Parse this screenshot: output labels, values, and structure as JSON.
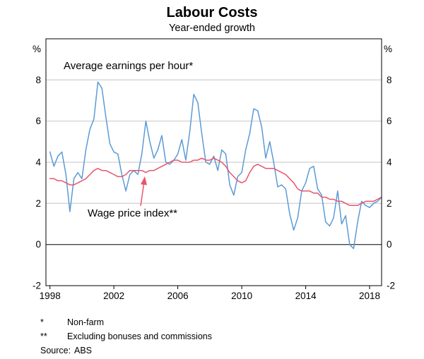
{
  "header": {
    "title": "Labour Costs",
    "subtitle": "Year-ended growth"
  },
  "axes": {
    "unit_left": "%",
    "unit_right": "%",
    "yticks": [
      -2,
      0,
      2,
      4,
      6,
      8
    ],
    "xticks": [
      1998,
      2002,
      2006,
      2010,
      2014,
      2018
    ]
  },
  "annotations": {
    "blue_label": "Average earnings per hour*",
    "red_label": "Wage price index**"
  },
  "footnotes": [
    {
      "marker": "*",
      "text": "Non-farm"
    },
    {
      "marker": "**",
      "text": "Excluding bonuses and commissions"
    },
    {
      "marker": "Source:",
      "text": "ABS"
    }
  ],
  "colors": {
    "blue": "#5b9bd5",
    "red": "#e8566b",
    "grid": "#c6c6c6",
    "zero_line": "#000000",
    "frame": "#000000"
  },
  "chart_data": {
    "type": "line",
    "title": "Labour Costs",
    "subtitle": "Year-ended growth",
    "xlabel": "",
    "ylabel": "%",
    "ylim": [
      -2,
      10
    ],
    "xlim": [
      1997.75,
      2018.75
    ],
    "x_start": 1998.0,
    "x_step": 0.25,
    "frequency": "quarterly",
    "grid": "horizontal",
    "legend_position": "inline-annotations",
    "series": [
      {
        "id": "average-earnings-per-hour",
        "name": "Average earnings per hour (Non-farm)",
        "color": "#5b9bd5",
        "values": [
          4.5,
          3.8,
          4.3,
          4.5,
          3.4,
          1.6,
          3.2,
          3.5,
          3.2,
          4.6,
          5.6,
          6.1,
          7.9,
          7.6,
          6.2,
          4.9,
          4.5,
          4.4,
          3.4,
          2.6,
          3.4,
          3.6,
          3.4,
          4.4,
          6.0,
          5.0,
          4.2,
          4.6,
          5.3,
          4.0,
          3.9,
          4.1,
          4.4,
          5.1,
          4.1,
          5.5,
          7.3,
          6.9,
          5.4,
          4.0,
          3.9,
          4.3,
          3.6,
          4.6,
          4.4,
          2.9,
          2.4,
          3.3,
          3.5,
          4.6,
          5.4,
          6.6,
          6.5,
          5.7,
          4.2,
          5.0,
          4.0,
          2.8,
          2.9,
          2.7,
          1.5,
          0.7,
          1.3,
          2.6,
          3.0,
          3.7,
          3.8,
          2.7,
          2.4,
          1.1,
          0.9,
          1.3,
          2.6,
          1.0,
          1.4,
          0.0,
          -0.2,
          1.1,
          2.1,
          1.9,
          1.8,
          2.0,
          2.1,
          2.3
        ]
      },
      {
        "id": "wage-price-index",
        "name": "Wage price index (Excluding bonuses and commissions)",
        "color": "#e8566b",
        "values": [
          3.2,
          3.2,
          3.1,
          3.1,
          3.0,
          2.9,
          2.9,
          3.0,
          3.1,
          3.2,
          3.4,
          3.6,
          3.7,
          3.6,
          3.6,
          3.5,
          3.4,
          3.3,
          3.3,
          3.4,
          3.6,
          3.6,
          3.6,
          3.6,
          3.5,
          3.6,
          3.6,
          3.7,
          3.8,
          3.9,
          4.0,
          4.1,
          4.1,
          4.0,
          4.0,
          4.0,
          4.1,
          4.1,
          4.2,
          4.1,
          4.1,
          4.2,
          4.1,
          4.0,
          3.8,
          3.5,
          3.3,
          3.1,
          3.0,
          3.1,
          3.5,
          3.8,
          3.9,
          3.8,
          3.7,
          3.7,
          3.7,
          3.6,
          3.5,
          3.4,
          3.2,
          3.0,
          2.7,
          2.6,
          2.6,
          2.6,
          2.5,
          2.5,
          2.3,
          2.3,
          2.2,
          2.2,
          2.1,
          2.1,
          2.0,
          1.9,
          1.9,
          1.9,
          2.0,
          2.1,
          2.1,
          2.1,
          2.2,
          2.3
        ]
      }
    ]
  }
}
